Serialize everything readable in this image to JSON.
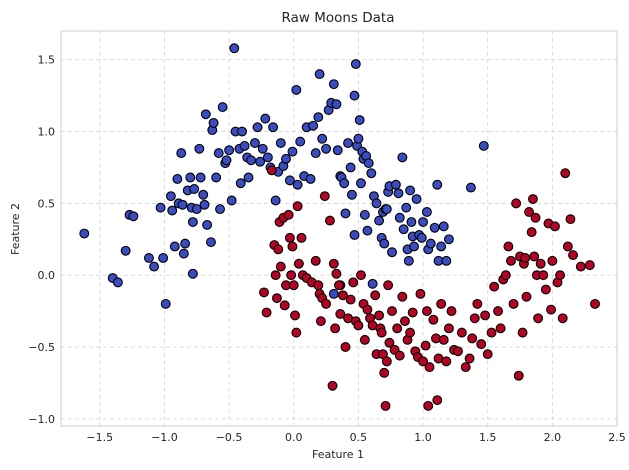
{
  "chart_data": {
    "type": "scatter",
    "title": "Raw Moons Data",
    "xlabel": "Feature 1",
    "ylabel": "Feature 2",
    "xlim": [
      -1.8,
      2.5
    ],
    "ylim": [
      -1.05,
      1.7
    ],
    "xticks": [
      -1.5,
      -1.0,
      -0.5,
      0.0,
      0.5,
      1.0,
      1.5,
      2.0,
      2.5
    ],
    "xtick_labels": [
      "−1.5",
      "−1.0",
      "−0.5",
      "0.0",
      "0.5",
      "1.0",
      "1.5",
      "2.0",
      "2.5"
    ],
    "yticks": [
      -1.0,
      -0.5,
      0.0,
      0.5,
      1.0,
      1.5
    ],
    "ytick_labels": [
      "−1.0",
      "−0.5",
      "0.0",
      "0.5",
      "1.0",
      "1.5"
    ],
    "grid": true,
    "series": [
      {
        "color": "#3b4cc0",
        "points": [
          [
            -1.62,
            0.29
          ],
          [
            -1.4,
            -0.02
          ],
          [
            -1.36,
            -0.05
          ],
          [
            -1.3,
            0.17
          ],
          [
            -1.27,
            0.42
          ],
          [
            -1.24,
            0.41
          ],
          [
            -1.12,
            0.12
          ],
          [
            -1.08,
            0.06
          ],
          [
            -1.03,
            0.47
          ],
          [
            -1.01,
            0.12
          ],
          [
            -0.99,
            -0.2
          ],
          [
            -0.95,
            0.55
          ],
          [
            -0.94,
            0.45
          ],
          [
            -0.92,
            0.2
          ],
          [
            -0.9,
            0.67
          ],
          [
            -0.89,
            0.5
          ],
          [
            -0.87,
            0.85
          ],
          [
            -0.86,
            0.49
          ],
          [
            -0.85,
            0.15
          ],
          [
            -0.84,
            0.22
          ],
          [
            -0.82,
            0.59
          ],
          [
            -0.8,
            0.68
          ],
          [
            -0.79,
            0.47
          ],
          [
            -0.78,
            0.01
          ],
          [
            -0.78,
            0.37
          ],
          [
            -0.77,
            0.6
          ],
          [
            -0.75,
            0.46
          ],
          [
            -0.73,
            0.88
          ],
          [
            -0.72,
            0.68
          ],
          [
            -0.7,
            0.56
          ],
          [
            -0.69,
            0.49
          ],
          [
            -0.68,
            1.12
          ],
          [
            -0.67,
            0.35
          ],
          [
            -0.64,
            0.23
          ],
          [
            -0.63,
            1.01
          ],
          [
            -0.62,
            1.06
          ],
          [
            -0.6,
            0.68
          ],
          [
            -0.58,
            0.85
          ],
          [
            -0.57,
            0.46
          ],
          [
            -0.55,
            1.17
          ],
          [
            -0.53,
            0.78
          ],
          [
            -0.52,
            0.8
          ],
          [
            -0.5,
            0.87
          ],
          [
            -0.48,
            0.52
          ],
          [
            -0.46,
            1.58
          ],
          [
            -0.45,
            1.0
          ],
          [
            -0.42,
            0.88
          ],
          [
            -0.41,
            0.64
          ],
          [
            -0.4,
            1.0
          ],
          [
            -0.38,
            0.9
          ],
          [
            -0.36,
            0.82
          ],
          [
            -0.35,
            0.68
          ],
          [
            -0.33,
            0.8
          ],
          [
            -0.3,
            0.92
          ],
          [
            -0.28,
            1.03
          ],
          [
            -0.26,
            0.79
          ],
          [
            -0.24,
            0.88
          ],
          [
            -0.22,
            1.09
          ],
          [
            -0.2,
            0.82
          ],
          [
            -0.18,
            0.75
          ],
          [
            -0.16,
            1.03
          ],
          [
            -0.14,
            0.52
          ],
          [
            -0.12,
            0.72
          ],
          [
            -0.1,
            0.92
          ],
          [
            -0.08,
            0.76
          ],
          [
            -0.06,
            0.81
          ],
          [
            -0.03,
            0.66
          ],
          [
            -0.01,
            0.86
          ],
          [
            0.02,
            1.29
          ],
          [
            0.03,
            0.63
          ],
          [
            0.05,
            0.93
          ],
          [
            0.08,
            0.69
          ],
          [
            0.1,
            1.03
          ],
          [
            0.13,
            0.67
          ],
          [
            0.15,
            1.04
          ],
          [
            0.17,
            0.85
          ],
          [
            0.19,
            1.1
          ],
          [
            0.2,
            1.4
          ],
          [
            0.22,
            0.95
          ],
          [
            0.25,
            0.88
          ],
          [
            0.27,
            1.15
          ],
          [
            0.29,
            1.2
          ],
          [
            0.31,
            1.33
          ],
          [
            0.33,
            1.19
          ],
          [
            0.34,
            0.87
          ],
          [
            0.36,
            0.69
          ],
          [
            0.37,
            0.68
          ],
          [
            0.39,
            0.64
          ],
          [
            0.4,
            0.43
          ],
          [
            0.42,
            0.92
          ],
          [
            0.44,
            0.75
          ],
          [
            0.45,
            0.56
          ],
          [
            0.47,
            1.25
          ],
          [
            0.47,
            0.28
          ],
          [
            0.48,
            1.47
          ],
          [
            0.49,
            0.9
          ],
          [
            0.5,
            0.95
          ],
          [
            0.51,
            1.08
          ],
          [
            0.52,
            0.64
          ],
          [
            0.53,
            0.86
          ],
          [
            0.54,
            0.81
          ],
          [
            0.55,
            0.42
          ],
          [
            0.56,
            0.83
          ],
          [
            0.57,
            0.31
          ],
          [
            0.58,
            0.78
          ],
          [
            0.6,
            0.71
          ],
          [
            0.62,
            0.55
          ],
          [
            0.64,
            0.5
          ],
          [
            0.66,
            0.38
          ],
          [
            0.68,
            0.26
          ],
          [
            0.69,
            0.44
          ],
          [
            0.7,
            0.22
          ],
          [
            0.71,
            0.46
          ],
          [
            0.72,
            0.46
          ],
          [
            0.73,
            0.58
          ],
          [
            0.74,
            0.62
          ],
          [
            0.76,
            0.16
          ],
          [
            0.79,
            0.63
          ],
          [
            0.81,
            0.57
          ],
          [
            0.82,
            0.4
          ],
          [
            0.84,
            0.82
          ],
          [
            0.85,
            0.32
          ],
          [
            0.87,
            0.47
          ],
          [
            0.88,
            0.18
          ],
          [
            0.89,
            0.1
          ],
          [
            0.9,
            0.59
          ],
          [
            0.91,
            0.37
          ],
          [
            0.92,
            0.27
          ],
          [
            0.93,
            0.2
          ],
          [
            0.95,
            0.53
          ],
          [
            0.97,
            0.28
          ],
          [
            0.99,
            0.26
          ],
          [
            1.0,
            0.37
          ],
          [
            1.03,
            0.44
          ],
          [
            1.04,
            0.18
          ],
          [
            1.06,
            0.22
          ],
          [
            1.09,
            0.33
          ],
          [
            1.11,
            0.63
          ],
          [
            1.12,
            0.1
          ],
          [
            1.14,
            0.2
          ],
          [
            1.16,
            0.34
          ],
          [
            1.18,
            0.1
          ],
          [
            1.2,
            0.25
          ],
          [
            1.37,
            0.61
          ],
          [
            1.47,
            0.9
          ],
          [
            0.31,
            -0.13
          ],
          [
            0.36,
            -0.07
          ],
          [
            0.61,
            -0.06
          ]
        ]
      },
      {
        "color": "#b40426",
        "points": [
          [
            -0.23,
            -0.12
          ],
          [
            -0.21,
            -0.26
          ],
          [
            -0.17,
            0.73
          ],
          [
            -0.15,
            0.21
          ],
          [
            -0.14,
            0.0
          ],
          [
            -0.13,
            -0.16
          ],
          [
            -0.12,
            0.18
          ],
          [
            -0.11,
            0.37
          ],
          [
            -0.1,
            0.06
          ],
          [
            -0.08,
            0.4
          ],
          [
            -0.07,
            -0.21
          ],
          [
            -0.06,
            -0.07
          ],
          [
            -0.04,
            0.42
          ],
          [
            -0.03,
            0.26
          ],
          [
            -0.02,
            0.0
          ],
          [
            -0.01,
            0.2
          ],
          [
            0.0,
            -0.07
          ],
          [
            0.01,
            -0.28
          ],
          [
            0.02,
            -0.4
          ],
          [
            0.03,
            0.48
          ],
          [
            0.04,
            0.08
          ],
          [
            0.06,
            0.26
          ],
          [
            0.07,
            0.0
          ],
          [
            0.1,
            -0.02
          ],
          [
            0.14,
            -0.05
          ],
          [
            0.17,
            0.1
          ],
          [
            0.19,
            -0.07
          ],
          [
            0.2,
            -0.13
          ],
          [
            0.21,
            -0.32
          ],
          [
            0.22,
            -0.16
          ],
          [
            0.24,
            0.55
          ],
          [
            0.25,
            -0.2
          ],
          [
            0.28,
            0.38
          ],
          [
            0.3,
            -0.77
          ],
          [
            0.31,
            0.08
          ],
          [
            0.32,
            -0.37
          ],
          [
            0.33,
            0.01
          ],
          [
            0.35,
            -0.07
          ],
          [
            0.36,
            -0.27
          ],
          [
            0.38,
            -0.14
          ],
          [
            0.4,
            -0.5
          ],
          [
            0.42,
            -0.3
          ],
          [
            0.44,
            -0.17
          ],
          [
            0.46,
            -0.05
          ],
          [
            0.48,
            -0.32
          ],
          [
            0.5,
            -0.35
          ],
          [
            0.52,
            0.0
          ],
          [
            0.54,
            -0.2
          ],
          [
            0.55,
            -0.45
          ],
          [
            0.57,
            -0.24
          ],
          [
            0.59,
            -0.3
          ],
          [
            0.61,
            -0.35
          ],
          [
            0.63,
            -0.14
          ],
          [
            0.64,
            -0.55
          ],
          [
            0.66,
            -0.28
          ],
          [
            0.67,
            -0.37
          ],
          [
            0.68,
            -0.4
          ],
          [
            0.69,
            -0.55
          ],
          [
            0.7,
            -0.68
          ],
          [
            0.71,
            -0.91
          ],
          [
            0.72,
            -0.6
          ],
          [
            0.73,
            -0.07
          ],
          [
            0.74,
            -0.47
          ],
          [
            0.76,
            -0.25
          ],
          [
            0.78,
            -0.52
          ],
          [
            0.8,
            -0.37
          ],
          [
            0.82,
            -0.56
          ],
          [
            0.84,
            -0.15
          ],
          [
            0.86,
            -0.32
          ],
          [
            0.88,
            -0.45
          ],
          [
            0.9,
            -0.4
          ],
          [
            0.92,
            -0.26
          ],
          [
            0.94,
            -0.53
          ],
          [
            0.96,
            -0.57
          ],
          [
            0.98,
            -0.13
          ],
          [
            1.0,
            -0.6
          ],
          [
            1.02,
            -0.49
          ],
          [
            1.03,
            -0.25
          ],
          [
            1.04,
            -0.91
          ],
          [
            1.05,
            -0.64
          ],
          [
            1.08,
            -0.31
          ],
          [
            1.1,
            -0.44
          ],
          [
            1.11,
            -0.87
          ],
          [
            1.12,
            -0.58
          ],
          [
            1.14,
            -0.2
          ],
          [
            1.16,
            -0.45
          ],
          [
            1.18,
            -0.6
          ],
          [
            1.2,
            -0.37
          ],
          [
            1.22,
            -0.25
          ],
          [
            1.24,
            -0.52
          ],
          [
            1.27,
            -0.53
          ],
          [
            1.3,
            -0.4
          ],
          [
            1.33,
            -0.64
          ],
          [
            1.36,
            -0.58
          ],
          [
            1.38,
            -0.44
          ],
          [
            1.4,
            -0.3
          ],
          [
            1.42,
            -0.2
          ],
          [
            1.45,
            -0.48
          ],
          [
            1.48,
            -0.28
          ],
          [
            1.5,
            -0.55
          ],
          [
            1.53,
            -0.4
          ],
          [
            1.55,
            -0.08
          ],
          [
            1.58,
            -0.25
          ],
          [
            1.6,
            -0.37
          ],
          [
            1.62,
            -0.03
          ],
          [
            1.64,
            0.0
          ],
          [
            1.66,
            0.2
          ],
          [
            1.68,
            0.1
          ],
          [
            1.7,
            -0.2
          ],
          [
            1.72,
            0.5
          ],
          [
            1.74,
            -0.7
          ],
          [
            1.75,
            0.13
          ],
          [
            1.77,
            -0.4
          ],
          [
            1.78,
            0.08
          ],
          [
            1.79,
            0.12
          ],
          [
            1.8,
            -0.15
          ],
          [
            1.82,
            0.44
          ],
          [
            1.84,
            0.3
          ],
          [
            1.85,
            0.53
          ],
          [
            1.86,
            0.13
          ],
          [
            1.87,
            0.4
          ],
          [
            1.88,
            0.0
          ],
          [
            1.89,
            -0.3
          ],
          [
            1.91,
            0.08
          ],
          [
            1.93,
            0.0
          ],
          [
            1.95,
            -0.1
          ],
          [
            1.97,
            0.36
          ],
          [
            1.99,
            -0.24
          ],
          [
            2.0,
            0.1
          ],
          [
            2.02,
            0.34
          ],
          [
            2.04,
            -0.05
          ],
          [
            2.06,
            0.0
          ],
          [
            2.08,
            -0.3
          ],
          [
            2.1,
            0.71
          ],
          [
            2.12,
            0.2
          ],
          [
            2.14,
            0.39
          ],
          [
            2.16,
            0.14
          ],
          [
            2.22,
            0.06
          ],
          [
            2.29,
            0.07
          ],
          [
            2.33,
            -0.2
          ]
        ]
      }
    ]
  }
}
